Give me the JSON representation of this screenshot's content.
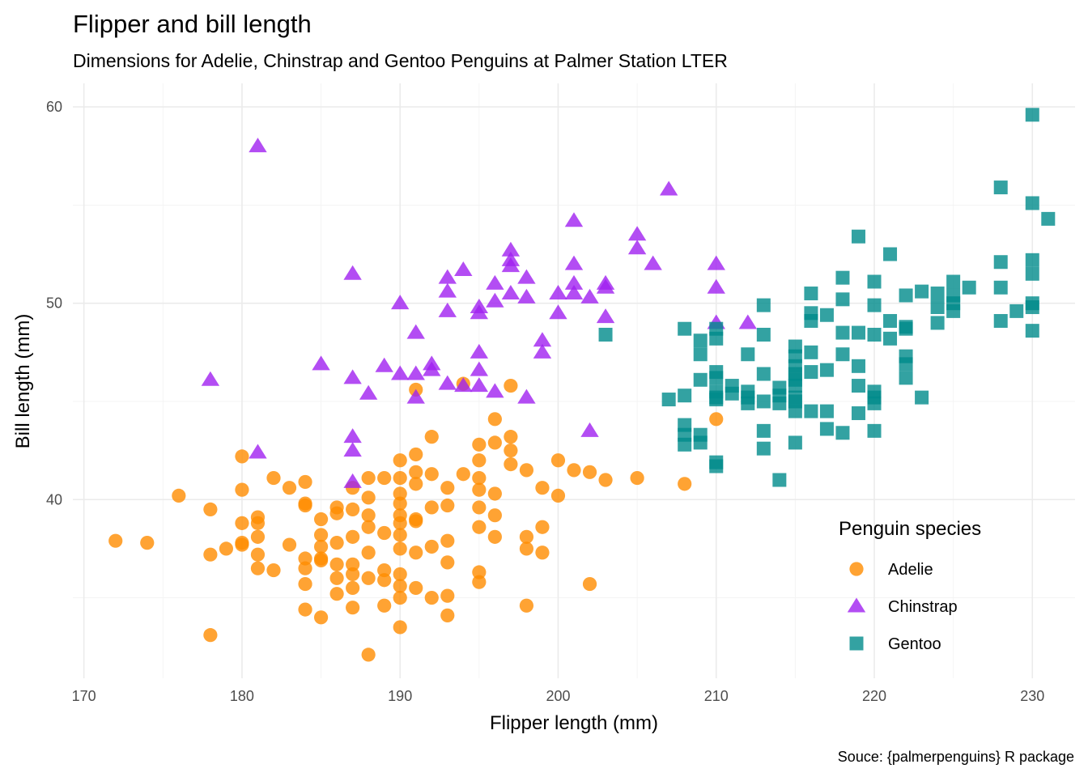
{
  "chart_data": {
    "type": "scatter",
    "title": "Flipper and bill length",
    "subtitle": "Dimensions for Adelie, Chinstrap and Gentoo Penguins at Palmer Station LTER",
    "xlabel": "Flipper length (mm)",
    "ylabel": "Bill length (mm)",
    "caption": "Souce: {palmerpenguins} R package",
    "xlim": [
      169.3,
      232.7
    ],
    "ylim": [
      30.9,
      61.2
    ],
    "x_ticks": [
      170,
      180,
      190,
      200,
      210,
      220,
      230
    ],
    "y_ticks": [
      40,
      50,
      60
    ],
    "grid": true,
    "legend": {
      "title": "Penguin species",
      "position": "bottom-right"
    },
    "series": [
      {
        "name": "Adelie",
        "color": "#FF8C00",
        "shape": "circle",
        "points": [
          [
            172,
            37.9
          ],
          [
            174,
            37.8
          ],
          [
            176,
            40.2
          ],
          [
            178,
            39.5
          ],
          [
            178,
            37.2
          ],
          [
            178,
            33.1
          ],
          [
            179,
            37.5
          ],
          [
            180,
            42.2
          ],
          [
            180,
            40.5
          ],
          [
            180,
            38.8
          ],
          [
            180,
            37.8
          ],
          [
            180,
            37.7
          ],
          [
            181,
            39.1
          ],
          [
            181,
            38.8
          ],
          [
            181,
            38.1
          ],
          [
            181,
            37.2
          ],
          [
            181,
            36.5
          ],
          [
            182,
            41.1
          ],
          [
            182,
            36.4
          ],
          [
            183,
            40.6
          ],
          [
            183,
            37.7
          ],
          [
            184,
            40.9
          ],
          [
            184,
            39.8
          ],
          [
            184,
            39.7
          ],
          [
            184,
            37.0
          ],
          [
            184,
            36.5
          ],
          [
            184,
            35.7
          ],
          [
            184,
            34.4
          ],
          [
            185,
            39.0
          ],
          [
            185,
            38.2
          ],
          [
            185,
            37.6
          ],
          [
            185,
            37.0
          ],
          [
            185,
            36.9
          ],
          [
            185,
            34.0
          ],
          [
            186,
            39.6
          ],
          [
            186,
            39.3
          ],
          [
            186,
            37.8
          ],
          [
            186,
            36.7
          ],
          [
            186,
            36.0
          ],
          [
            186,
            35.2
          ],
          [
            187,
            40.6
          ],
          [
            187,
            39.5
          ],
          [
            187,
            38.1
          ],
          [
            187,
            36.7
          ],
          [
            187,
            36.2
          ],
          [
            187,
            35.5
          ],
          [
            187,
            34.5
          ],
          [
            188,
            41.1
          ],
          [
            188,
            40.1
          ],
          [
            188,
            39.2
          ],
          [
            188,
            38.6
          ],
          [
            188,
            37.3
          ],
          [
            188,
            36.0
          ],
          [
            188,
            32.1
          ],
          [
            189,
            41.1
          ],
          [
            189,
            38.3
          ],
          [
            189,
            36.4
          ],
          [
            189,
            35.9
          ],
          [
            189,
            34.6
          ],
          [
            190,
            42.0
          ],
          [
            190,
            41.1
          ],
          [
            190,
            40.3
          ],
          [
            190,
            39.8
          ],
          [
            190,
            39.2
          ],
          [
            190,
            38.8
          ],
          [
            190,
            38.2
          ],
          [
            190,
            37.5
          ],
          [
            190,
            36.2
          ],
          [
            190,
            35.6
          ],
          [
            190,
            35.0
          ],
          [
            190,
            33.5
          ],
          [
            191,
            42.3
          ],
          [
            191,
            41.4
          ],
          [
            191,
            40.8
          ],
          [
            191,
            39.0
          ],
          [
            191,
            38.9
          ],
          [
            191,
            37.3
          ],
          [
            191,
            35.5
          ],
          [
            191,
            45.6
          ],
          [
            192,
            43.2
          ],
          [
            192,
            41.3
          ],
          [
            192,
            39.6
          ],
          [
            192,
            37.6
          ],
          [
            192,
            35.0
          ],
          [
            193,
            40.6
          ],
          [
            193,
            39.7
          ],
          [
            193,
            37.9
          ],
          [
            193,
            36.8
          ],
          [
            193,
            35.1
          ],
          [
            193,
            34.1
          ],
          [
            194,
            41.3
          ],
          [
            194,
            45.9
          ],
          [
            195,
            42.8
          ],
          [
            195,
            42.0
          ],
          [
            195,
            41.1
          ],
          [
            195,
            40.5
          ],
          [
            195,
            39.6
          ],
          [
            195,
            38.6
          ],
          [
            195,
            36.3
          ],
          [
            195,
            35.8
          ],
          [
            196,
            44.1
          ],
          [
            196,
            42.9
          ],
          [
            196,
            40.3
          ],
          [
            196,
            39.2
          ],
          [
            196,
            38.1
          ],
          [
            197,
            43.2
          ],
          [
            197,
            42.5
          ],
          [
            197,
            41.8
          ],
          [
            197,
            45.8
          ],
          [
            198,
            41.5
          ],
          [
            198,
            38.1
          ],
          [
            198,
            37.5
          ],
          [
            198,
            34.6
          ],
          [
            199,
            40.6
          ],
          [
            199,
            38.6
          ],
          [
            199,
            37.3
          ],
          [
            200,
            42.0
          ],
          [
            200,
            40.2
          ],
          [
            201,
            41.5
          ],
          [
            202,
            41.4
          ],
          [
            202,
            35.7
          ],
          [
            203,
            41.0
          ],
          [
            205,
            41.1
          ],
          [
            208,
            40.8
          ],
          [
            210,
            44.1
          ]
        ]
      },
      {
        "name": "Chinstrap",
        "color": "#A020F0",
        "shape": "triangle",
        "points": [
          [
            178,
            46.1
          ],
          [
            181,
            58.0
          ],
          [
            181,
            42.4
          ],
          [
            185,
            46.9
          ],
          [
            187,
            51.5
          ],
          [
            187,
            46.2
          ],
          [
            187,
            43.2
          ],
          [
            187,
            42.5
          ],
          [
            187,
            40.9
          ],
          [
            188,
            45.4
          ],
          [
            189,
            46.8
          ],
          [
            190,
            50.0
          ],
          [
            190,
            46.4
          ],
          [
            191,
            48.5
          ],
          [
            191,
            46.4
          ],
          [
            191,
            45.2
          ],
          [
            192,
            46.9
          ],
          [
            192,
            46.6
          ],
          [
            193,
            51.3
          ],
          [
            193,
            50.6
          ],
          [
            193,
            49.6
          ],
          [
            193,
            45.9
          ],
          [
            194,
            51.7
          ],
          [
            194,
            45.8
          ],
          [
            195,
            49.8
          ],
          [
            195,
            49.5
          ],
          [
            195,
            47.5
          ],
          [
            195,
            46.6
          ],
          [
            195,
            45.8
          ],
          [
            196,
            51.0
          ],
          [
            196,
            50.1
          ],
          [
            196,
            45.5
          ],
          [
            197,
            52.7
          ],
          [
            197,
            52.2
          ],
          [
            197,
            51.9
          ],
          [
            197,
            50.5
          ],
          [
            198,
            51.3
          ],
          [
            198,
            50.3
          ],
          [
            198,
            45.2
          ],
          [
            199,
            48.1
          ],
          [
            199,
            47.5
          ],
          [
            200,
            50.5
          ],
          [
            200,
            49.5
          ],
          [
            201,
            54.2
          ],
          [
            201,
            52.0
          ],
          [
            201,
            51.0
          ],
          [
            201,
            50.5
          ],
          [
            202,
            50.3
          ],
          [
            202,
            43.5
          ],
          [
            203,
            51.0
          ],
          [
            203,
            50.8
          ],
          [
            203,
            49.3
          ],
          [
            205,
            53.5
          ],
          [
            205,
            52.8
          ],
          [
            206,
            52.0
          ],
          [
            207,
            55.8
          ],
          [
            210,
            52.0
          ],
          [
            210,
            50.8
          ],
          [
            210,
            49.0
          ],
          [
            212,
            49.0
          ]
        ]
      },
      {
        "name": "Gentoo",
        "color": "#008B8B",
        "shape": "square",
        "points": [
          [
            203,
            48.4
          ],
          [
            207,
            45.1
          ],
          [
            208,
            48.7
          ],
          [
            208,
            45.3
          ],
          [
            208,
            43.8
          ],
          [
            208,
            43.3
          ],
          [
            208,
            42.8
          ],
          [
            209,
            48.1
          ],
          [
            209,
            47.4
          ],
          [
            209,
            46.1
          ],
          [
            209,
            43.3
          ],
          [
            209,
            42.9
          ],
          [
            210,
            48.7
          ],
          [
            210,
            48.2
          ],
          [
            210,
            46.5
          ],
          [
            210,
            46.2
          ],
          [
            210,
            45.5
          ],
          [
            210,
            45.2
          ],
          [
            210,
            45.1
          ],
          [
            210,
            41.9
          ],
          [
            210,
            41.7
          ],
          [
            211,
            45.8
          ],
          [
            211,
            45.4
          ],
          [
            212,
            47.4
          ],
          [
            212,
            45.5
          ],
          [
            212,
            45.2
          ],
          [
            212,
            44.9
          ],
          [
            213,
            49.9
          ],
          [
            213,
            48.4
          ],
          [
            213,
            46.4
          ],
          [
            213,
            45.0
          ],
          [
            213,
            43.5
          ],
          [
            213,
            42.6
          ],
          [
            214,
            45.7
          ],
          [
            214,
            45.3
          ],
          [
            214,
            44.9
          ],
          [
            214,
            41.0
          ],
          [
            215,
            47.8
          ],
          [
            215,
            47.3
          ],
          [
            215,
            46.8
          ],
          [
            215,
            46.4
          ],
          [
            215,
            46.1
          ],
          [
            215,
            45.8
          ],
          [
            215,
            45.2
          ],
          [
            215,
            45.0
          ],
          [
            215,
            44.5
          ],
          [
            215,
            42.9
          ],
          [
            216,
            50.5
          ],
          [
            216,
            49.5
          ],
          [
            216,
            49.1
          ],
          [
            216,
            47.5
          ],
          [
            216,
            46.5
          ],
          [
            216,
            44.5
          ],
          [
            217,
            49.4
          ],
          [
            217,
            46.6
          ],
          [
            217,
            44.5
          ],
          [
            217,
            43.6
          ],
          [
            218,
            51.3
          ],
          [
            218,
            50.2
          ],
          [
            218,
            48.5
          ],
          [
            218,
            47.4
          ],
          [
            218,
            43.4
          ],
          [
            219,
            53.4
          ],
          [
            219,
            48.5
          ],
          [
            219,
            46.8
          ],
          [
            219,
            45.8
          ],
          [
            219,
            44.4
          ],
          [
            220,
            51.1
          ],
          [
            220,
            49.9
          ],
          [
            220,
            48.4
          ],
          [
            220,
            45.5
          ],
          [
            220,
            45.2
          ],
          [
            220,
            44.9
          ],
          [
            220,
            43.5
          ],
          [
            221,
            52.5
          ],
          [
            221,
            49.1
          ],
          [
            221,
            48.2
          ],
          [
            222,
            50.4
          ],
          [
            222,
            48.8
          ],
          [
            222,
            48.7
          ],
          [
            222,
            47.3
          ],
          [
            222,
            46.9
          ],
          [
            222,
            46.2
          ],
          [
            223,
            50.6
          ],
          [
            223,
            45.2
          ],
          [
            224,
            50.5
          ],
          [
            224,
            49.8
          ],
          [
            224,
            49.0
          ],
          [
            225,
            51.1
          ],
          [
            225,
            50.4
          ],
          [
            225,
            50.0
          ],
          [
            225,
            49.6
          ],
          [
            226,
            50.8
          ],
          [
            228,
            55.9
          ],
          [
            228,
            52.1
          ],
          [
            228,
            50.8
          ],
          [
            228,
            49.1
          ],
          [
            229,
            49.6
          ],
          [
            230,
            59.6
          ],
          [
            230,
            55.1
          ],
          [
            230,
            52.2
          ],
          [
            230,
            51.5
          ],
          [
            230,
            50.0
          ],
          [
            230,
            49.8
          ],
          [
            230,
            48.6
          ],
          [
            231,
            54.3
          ]
        ]
      }
    ]
  }
}
